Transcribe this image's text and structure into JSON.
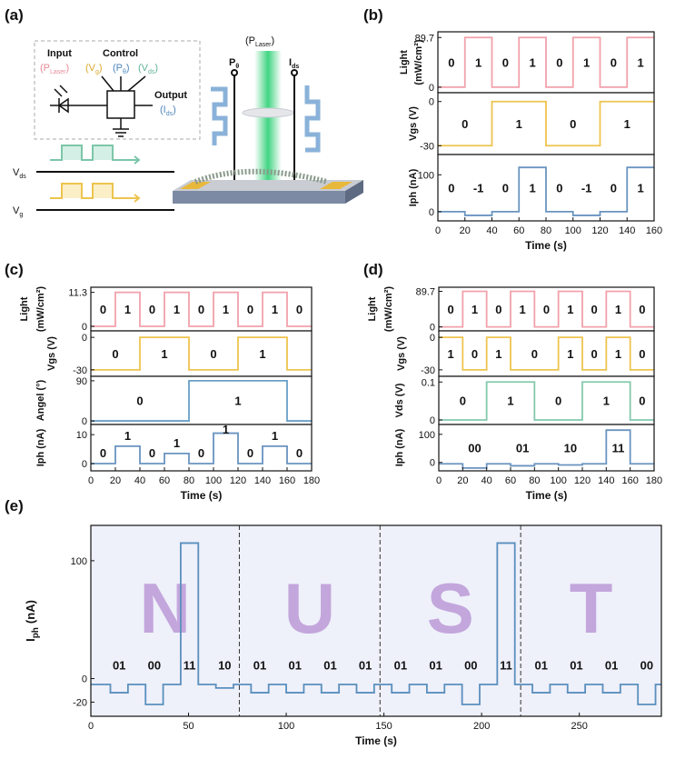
{
  "diagram": {
    "panel": "(a)",
    "input": "Input",
    "control": "Control",
    "output": "Output",
    "in_laser": [
      "(P",
      "Laser",
      ")"
    ],
    "ctl_vg": [
      "(V",
      "g",
      ")"
    ],
    "ctl_pt": [
      "(P",
      "θ",
      ")"
    ],
    "ctl_vds": [
      "(V",
      "ds",
      ")"
    ],
    "out_ids": [
      "(I",
      "ds",
      ")"
    ],
    "wave_vds": [
      "V",
      "ds"
    ],
    "wave_vg": [
      "V",
      "g"
    ],
    "beam": [
      "(P",
      "Laser",
      ")"
    ],
    "p_theta": [
      "P",
      "θ"
    ],
    "i_ds": [
      "I",
      "ds"
    ]
  },
  "chart_data": [
    {
      "type": "line",
      "panel": "(b)",
      "ylabel": "Light",
      "ylabel2": "(mW/cm²)",
      "x": [
        0,
        20,
        20,
        40,
        40,
        60,
        60,
        80,
        80,
        100,
        100,
        120,
        120,
        140,
        140,
        160
      ],
      "series": [
        {
          "color": "#f2a1ab",
          "values": [
            0,
            0,
            89.7,
            89.7,
            0,
            0,
            89.7,
            89.7,
            0,
            0,
            89.7,
            89.7,
            0,
            0,
            89.7,
            89.7
          ]
        }
      ],
      "xlim": [
        0,
        160
      ],
      "ylim": [
        -10,
        100
      ],
      "yticks": [
        0,
        89.7
      ],
      "annotations": [
        "0",
        "1",
        "0",
        "1",
        "0",
        "1",
        "0",
        "1"
      ]
    },
    {
      "type": "line",
      "ylabel": "Vgs (V)",
      "x": [
        0,
        40,
        40,
        80,
        80,
        120,
        120,
        160
      ],
      "series": [
        {
          "color": "#eec44f",
          "values": [
            -30,
            -30,
            0,
            0,
            -30,
            -30,
            0,
            0
          ]
        }
      ],
      "xlim": [
        0,
        160
      ],
      "ylim": [
        -36,
        6
      ],
      "yticks": [
        -30,
        0
      ],
      "annotations": [
        "0",
        "1",
        "0",
        "1"
      ]
    },
    {
      "type": "line",
      "ylabel": "Iph (nA)",
      "x": [
        0,
        20,
        20,
        40,
        40,
        60,
        60,
        80,
        80,
        100,
        100,
        120,
        120,
        140,
        140,
        160
      ],
      "series": [
        {
          "color": "#6a94c0",
          "values": [
            0,
            0,
            -10,
            -10,
            0,
            0,
            120,
            120,
            0,
            0,
            -10,
            -10,
            0,
            0,
            120,
            120
          ]
        }
      ],
      "xlim": [
        0,
        160
      ],
      "ylim": [
        -25,
        155
      ],
      "yticks": [
        0,
        100
      ],
      "xticks": [
        0,
        20,
        40,
        60,
        80,
        100,
        120,
        140,
        160
      ],
      "xlabel": "Time (s)",
      "annotations": [
        "0",
        "-1",
        "0",
        "1",
        "0",
        "-1",
        "0",
        "1"
      ]
    },
    {
      "type": "line",
      "panel": "(c)",
      "ylabel": "Light",
      "ylabel2": "(mW/cm²)",
      "x": [
        0,
        20,
        20,
        40,
        40,
        60,
        60,
        80,
        80,
        100,
        100,
        120,
        120,
        140,
        140,
        160,
        160,
        180
      ],
      "series": [
        {
          "color": "#f2a1ab",
          "values": [
            0,
            0,
            11.3,
            11.3,
            0,
            0,
            11.3,
            11.3,
            0,
            0,
            11.3,
            11.3,
            0,
            0,
            11.3,
            11.3,
            0,
            0
          ]
        }
      ],
      "xlim": [
        0,
        180
      ],
      "ylim": [
        -1.5,
        13
      ],
      "yticks": [
        0,
        11.3
      ],
      "annotations": [
        "0",
        "1",
        "0",
        "1",
        "0",
        "1",
        "0",
        "1",
        "0"
      ]
    },
    {
      "type": "line",
      "ylabel": "Vgs (V)",
      "x": [
        0,
        40,
        40,
        80,
        80,
        120,
        120,
        160,
        160,
        180
      ],
      "series": [
        {
          "color": "#eec44f",
          "values": [
            -30,
            -30,
            0,
            0,
            -30,
            -30,
            0,
            0,
            -30,
            -30
          ]
        }
      ],
      "xlim": [
        0,
        180
      ],
      "ylim": [
        -36,
        6
      ],
      "yticks": [
        -30,
        0
      ],
      "annotations": [
        "0",
        "1",
        "0",
        "1"
      ]
    },
    {
      "type": "line",
      "ylabel": "Angel (°)",
      "x": [
        0,
        80,
        80,
        160,
        160,
        180
      ],
      "series": [
        {
          "color": "#6aa0c8",
          "values": [
            0,
            0,
            90,
            90,
            0,
            0
          ]
        }
      ],
      "xlim": [
        0,
        180
      ],
      "ylim": [
        -8,
        100
      ],
      "yticks": [
        0,
        90
      ],
      "annotations": [
        "0",
        "1"
      ]
    },
    {
      "type": "line",
      "ylabel": "Iph (nA)",
      "x": [
        0,
        20,
        20,
        40,
        40,
        60,
        60,
        80,
        80,
        100,
        100,
        120,
        120,
        140,
        140,
        160,
        160,
        180
      ],
      "series": [
        {
          "color": "#6a94c0",
          "values": [
            0,
            0,
            6,
            6,
            0,
            0,
            3.5,
            3.5,
            0,
            0,
            10.5,
            10.5,
            0,
            0,
            6,
            6,
            0,
            0
          ]
        }
      ],
      "xlim": [
        0,
        180
      ],
      "ylim": [
        -2.5,
        13.5
      ],
      "yticks": [
        0,
        10
      ],
      "xticks": [
        0,
        20,
        40,
        60,
        80,
        100,
        120,
        140,
        160,
        180
      ],
      "xlabel": "Time (s)",
      "annotations": [
        "0",
        "1",
        "0",
        "1",
        "0",
        "1",
        "0",
        "1",
        "0"
      ]
    },
    {
      "type": "line",
      "panel": "(d)",
      "ylabel": "Light",
      "ylabel2": "(mW/cm²)",
      "x": [
        0,
        20,
        20,
        40,
        40,
        60,
        60,
        80,
        80,
        100,
        100,
        120,
        120,
        140,
        140,
        160,
        160,
        180
      ],
      "series": [
        {
          "color": "#f2a1ab",
          "values": [
            0,
            0,
            89.7,
            89.7,
            0,
            0,
            89.7,
            89.7,
            0,
            0,
            89.7,
            89.7,
            0,
            0,
            89.7,
            89.7,
            0,
            0
          ]
        }
      ],
      "xlim": [
        0,
        180
      ],
      "ylim": [
        -10,
        100
      ],
      "yticks": [
        0,
        89.7
      ],
      "annotations": [
        "0",
        "1",
        "0",
        "1",
        "0",
        "1",
        "0",
        "1",
        "0"
      ]
    },
    {
      "type": "line",
      "ylabel": "Vgs (V)",
      "x": [
        0,
        20,
        20,
        40,
        40,
        60,
        60,
        100,
        100,
        120,
        120,
        140,
        140,
        160,
        160,
        180
      ],
      "series": [
        {
          "color": "#eec44f",
          "values": [
            0,
            0,
            -30,
            -30,
            0,
            0,
            -30,
            -30,
            0,
            0,
            -30,
            -30,
            0,
            0,
            -30,
            -30
          ]
        }
      ],
      "xlim": [
        0,
        180
      ],
      "ylim": [
        -36,
        6
      ],
      "yticks": [
        -30,
        0
      ],
      "annotations": [
        "1",
        "0",
        "1",
        "0",
        "1",
        "0",
        "1",
        "0"
      ]
    },
    {
      "type": "line",
      "ylabel": "Vds (V)",
      "x": [
        0,
        40,
        40,
        80,
        80,
        120,
        120,
        160,
        160,
        180
      ],
      "series": [
        {
          "color": "#84c9ae",
          "values": [
            0,
            0,
            0.1,
            0.1,
            0,
            0,
            0.1,
            0.1,
            0,
            0
          ]
        }
      ],
      "xlim": [
        0,
        180
      ],
      "ylim": [
        -0.012,
        0.115
      ],
      "yticks": [
        0,
        0.1
      ],
      "annotations": [
        "0",
        "1",
        "0",
        "1",
        "0"
      ]
    },
    {
      "type": "line",
      "ylabel": "Iph (nA)",
      "x": [
        0,
        20,
        20,
        40,
        40,
        60,
        60,
        80,
        80,
        100,
        100,
        120,
        120,
        140,
        140,
        160,
        160,
        180
      ],
      "series": [
        {
          "color": "#6a94c0",
          "values": [
            -5,
            -5,
            -20,
            -20,
            -5,
            -5,
            -12,
            -12,
            -5,
            -5,
            -9,
            -9,
            -5,
            -5,
            115,
            115,
            -5,
            -5
          ]
        }
      ],
      "xlim": [
        0,
        180
      ],
      "ylim": [
        -30,
        135
      ],
      "yticks": [
        0,
        100
      ],
      "xticks": [
        0,
        20,
        40,
        60,
        80,
        100,
        120,
        140,
        160,
        180
      ],
      "xlabel": "Time (s)",
      "annotations": [
        "00",
        "01",
        "10",
        "11"
      ]
    },
    {
      "type": "line",
      "panel": "(e)",
      "ylabel": [
        "I",
        "ph",
        "(nA)"
      ],
      "x": [
        0,
        10,
        10,
        19,
        19,
        28,
        28,
        37,
        37,
        46,
        46,
        55,
        55,
        64,
        64,
        73,
        73,
        82,
        82,
        91,
        91,
        100,
        100,
        109,
        109,
        118,
        118,
        127,
        127,
        136,
        136,
        145,
        145,
        154,
        154,
        163,
        163,
        172,
        172,
        181,
        181,
        190,
        190,
        199,
        199,
        208,
        208,
        217,
        217,
        226,
        226,
        235,
        235,
        244,
        244,
        253,
        253,
        262,
        262,
        271,
        271,
        280,
        280,
        289,
        289,
        292
      ],
      "series": [
        {
          "color": "#5a8fbd",
          "values": [
            -5,
            -5,
            -12,
            -12,
            -5,
            -5,
            -22,
            -22,
            -5,
            -5,
            115,
            115,
            -5,
            -5,
            -8,
            -8,
            -5,
            -5,
            -12,
            -12,
            -5,
            -5,
            -12,
            -12,
            -5,
            -5,
            -12,
            -12,
            -5,
            -5,
            -12,
            -12,
            -5,
            -5,
            -12,
            -12,
            -5,
            -5,
            -12,
            -12,
            -5,
            -5,
            -22,
            -22,
            -5,
            -5,
            115,
            115,
            -5,
            -5,
            -12,
            -12,
            -5,
            -5,
            -12,
            -12,
            -5,
            -5,
            -12,
            -12,
            -5,
            -5,
            -22,
            -22,
            -5,
            -5
          ]
        }
      ],
      "xlim": [
        0,
        292
      ],
      "ylim": [
        -32,
        130
      ],
      "yticks": [
        -20,
        0,
        100
      ],
      "xticks": [
        0,
        50,
        100,
        150,
        200,
        250
      ],
      "xlabel": "Time (s)",
      "dividers": [
        76,
        148,
        220
      ],
      "letters": [
        "N",
        "U",
        "S",
        "T"
      ],
      "annotations": [
        "01",
        "00",
        "11",
        "10",
        "01",
        "01",
        "01",
        "01",
        "01",
        "01",
        "00",
        "11",
        "01",
        "01",
        "01",
        "00"
      ]
    }
  ]
}
